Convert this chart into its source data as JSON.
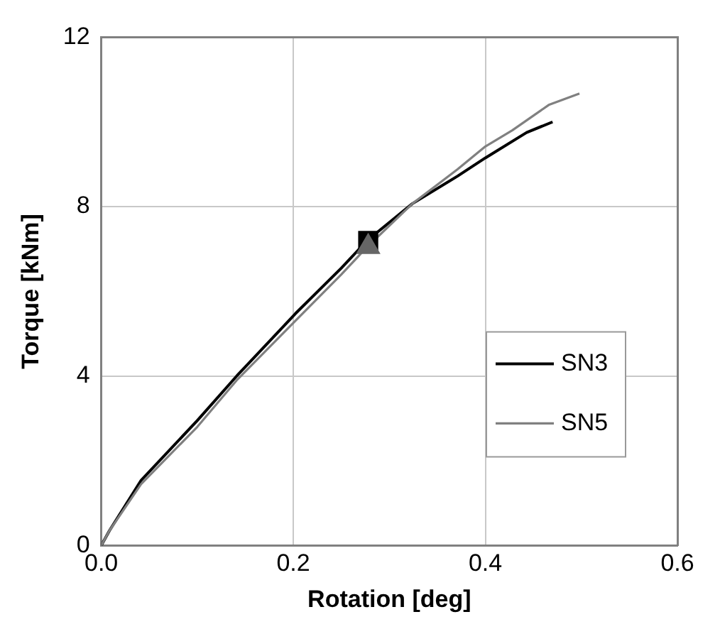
{
  "chart_data": {
    "type": "line",
    "xlabel": "Rotation [deg]",
    "ylabel": "Torque [kNm]",
    "xlim": [
      0,
      0.6
    ],
    "xticks": [
      {
        "value": 0,
        "label": "0.0"
      },
      0.2,
      0.4,
      0.6
    ],
    "ylim": [
      0,
      12
    ],
    "yticks": [
      0,
      4,
      8,
      12
    ],
    "grid": true,
    "legend": "right",
    "marker": "none",
    "line_style": "solid",
    "series": [
      {
        "name": "SN3",
        "color": "#000000",
        "x": [
          0,
          0.0085,
          0.0415,
          0.1,
          0.141,
          0.202,
          0.25,
          0.277,
          0.324,
          0.371,
          0.4,
          0.443,
          0.47
        ],
        "values": [
          0,
          0.35,
          1.54,
          2.95,
          4.0,
          5.47,
          6.55,
          7.2,
          8.07,
          8.72,
          9.15,
          9.75,
          10.0
        ]
      },
      {
        "name": "SN5",
        "color": "#808080",
        "x": [
          0,
          0.0085,
          0.0415,
          0.1,
          0.141,
          0.202,
          0.25,
          0.277,
          0.324,
          0.371,
          0.4,
          0.428,
          0.466,
          0.498
        ],
        "values": [
          0,
          0.35,
          1.45,
          2.8,
          3.9,
          5.3,
          6.4,
          7.05,
          8.07,
          8.88,
          9.42,
          9.8,
          10.4,
          10.67
        ]
      },
      {
        "type": "scatter",
        "marker": "square",
        "color": "#000000",
        "x": [
          0.278
        ],
        "values": [
          7.19
        ]
      },
      {
        "type": "scatter",
        "marker": "triangle",
        "color": "#666666",
        "x": [
          0.278
        ],
        "values": [
          7.05
        ]
      }
    ]
  }
}
